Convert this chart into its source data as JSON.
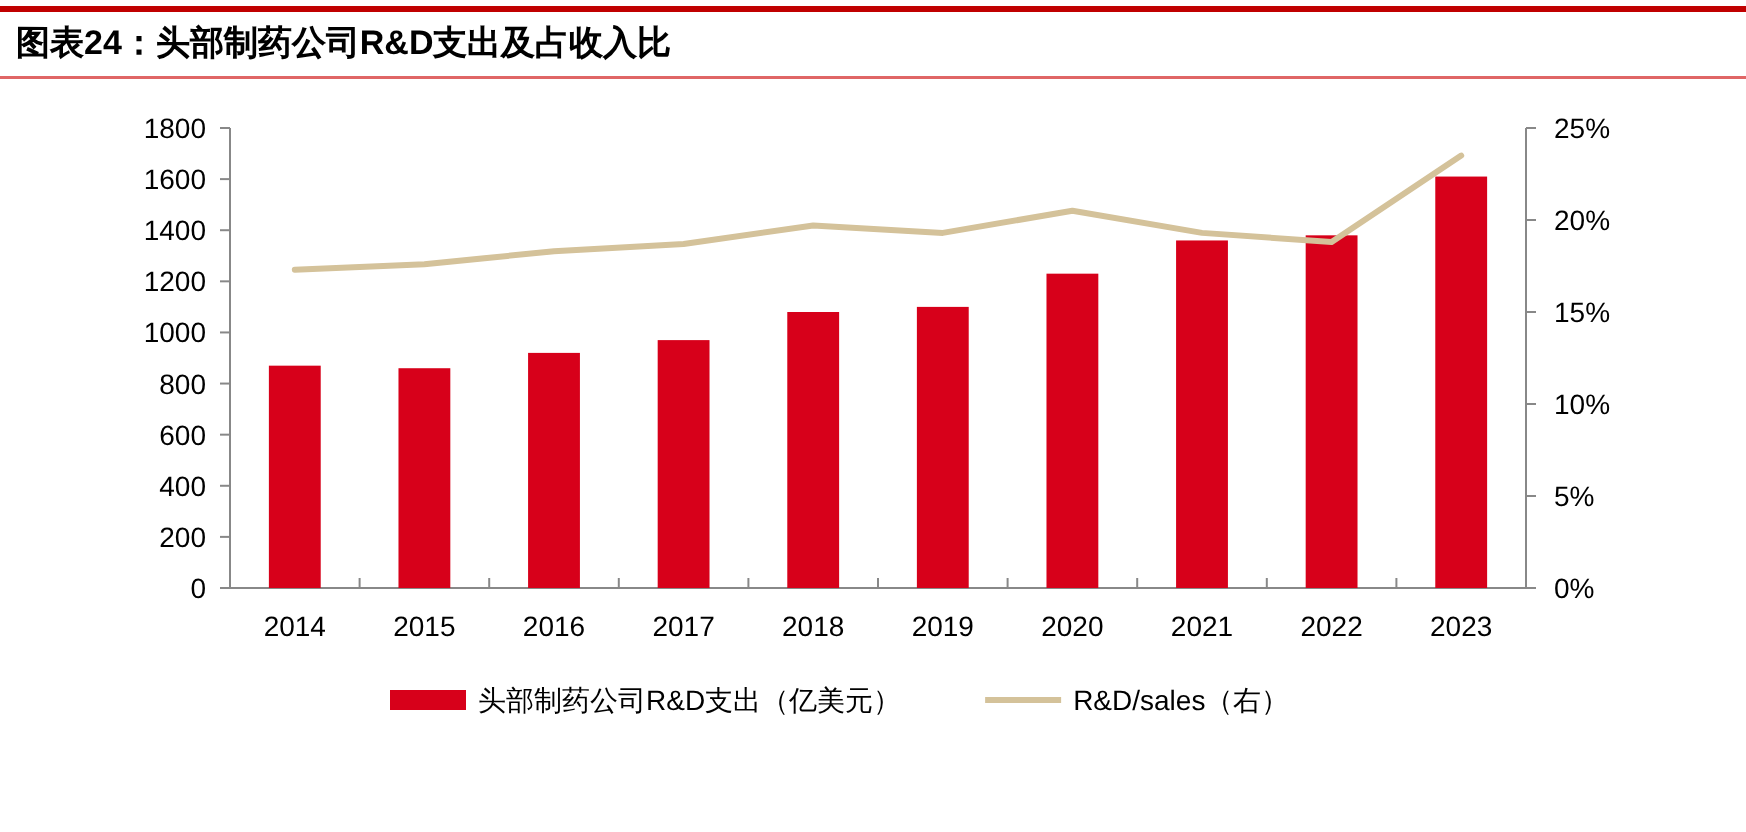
{
  "chart_data": {
    "type": "bar",
    "title": "图表24：头部制药公司R&D支出及占收入比",
    "categories": [
      "2014",
      "2015",
      "2016",
      "2017",
      "2018",
      "2019",
      "2020",
      "2021",
      "2022",
      "2023"
    ],
    "series": [
      {
        "name": "头部制药公司R&D支出（亿美元）",
        "color": "#d7001a",
        "values": [
          870,
          860,
          920,
          970,
          1080,
          1100,
          1230,
          1360,
          1380,
          1610
        ]
      },
      {
        "name": "R&D/sales（右）",
        "type": "line",
        "axis": "y2",
        "color": "#d4c29a",
        "values": [
          17.3,
          17.6,
          18.3,
          18.7,
          19.7,
          19.3,
          20.5,
          19.3,
          18.8,
          23.5
        ]
      }
    ],
    "ylim": [
      0,
      1800
    ],
    "yticks": [
      0,
      200,
      400,
      600,
      800,
      1000,
      1200,
      1400,
      1600,
      1800
    ],
    "y2lim": [
      0,
      25
    ],
    "y2ticks": [
      {
        "value": 0,
        "label": "0%"
      },
      {
        "value": 5,
        "label": "5%"
      },
      {
        "value": 10,
        "label": "10%"
      },
      {
        "value": 15,
        "label": "15%"
      },
      {
        "value": 20,
        "label": "20%"
      },
      {
        "value": 25,
        "label": "25%"
      }
    ],
    "legend": "bottom",
    "grid": false
  }
}
